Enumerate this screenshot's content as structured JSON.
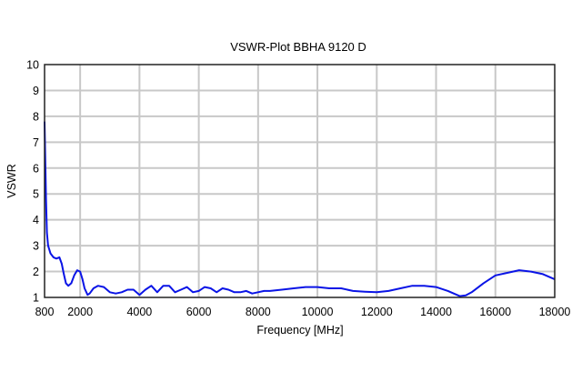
{
  "chart_data": {
    "type": "line",
    "title": "VSWR-Plot BBHA 9120 D",
    "xlabel": "Frequency [MHz]",
    "ylabel": "VSWR",
    "xlim": [
      800,
      18000
    ],
    "ylim": [
      1,
      10
    ],
    "grid": true,
    "legend": null,
    "x_ticks": [
      800,
      2000,
      4000,
      6000,
      8000,
      10000,
      12000,
      14000,
      16000,
      18000
    ],
    "y_ticks": [
      1,
      2,
      3,
      4,
      5,
      6,
      7,
      8,
      9,
      10
    ],
    "series": [
      {
        "name": "VSWR",
        "color": "#0a14e6",
        "x": [
          800,
          820,
          850,
          880,
          920,
          1000,
          1100,
          1200,
          1300,
          1380,
          1450,
          1520,
          1600,
          1700,
          1800,
          1900,
          2000,
          2080,
          2150,
          2250,
          2320,
          2450,
          2600,
          2800,
          3000,
          3200,
          3400,
          3600,
          3800,
          4000,
          4200,
          4400,
          4600,
          4800,
          5000,
          5200,
          5400,
          5600,
          5800,
          6000,
          6200,
          6400,
          6600,
          6800,
          7000,
          7200,
          7400,
          7600,
          7800,
          8000,
          8200,
          8400,
          8800,
          9200,
          9600,
          10000,
          10400,
          10800,
          11200,
          11600,
          12000,
          12400,
          12800,
          13200,
          13600,
          14000,
          14400,
          14800,
          15000,
          15200,
          15600,
          16000,
          16400,
          16800,
          17200,
          17600,
          18000
        ],
        "y": [
          7.8,
          6.5,
          4.8,
          3.5,
          3.0,
          2.7,
          2.55,
          2.5,
          2.55,
          2.3,
          1.9,
          1.55,
          1.45,
          1.55,
          1.85,
          2.05,
          2.0,
          1.7,
          1.35,
          1.1,
          1.15,
          1.35,
          1.45,
          1.4,
          1.2,
          1.15,
          1.2,
          1.3,
          1.3,
          1.1,
          1.3,
          1.45,
          1.2,
          1.45,
          1.45,
          1.2,
          1.3,
          1.4,
          1.2,
          1.25,
          1.4,
          1.35,
          1.2,
          1.35,
          1.3,
          1.2,
          1.2,
          1.25,
          1.15,
          1.2,
          1.25,
          1.25,
          1.3,
          1.35,
          1.4,
          1.4,
          1.35,
          1.35,
          1.25,
          1.22,
          1.2,
          1.25,
          1.35,
          1.45,
          1.45,
          1.4,
          1.25,
          1.05,
          1.08,
          1.2,
          1.55,
          1.85,
          1.95,
          2.05,
          2.0,
          1.9,
          1.7
        ]
      }
    ]
  }
}
